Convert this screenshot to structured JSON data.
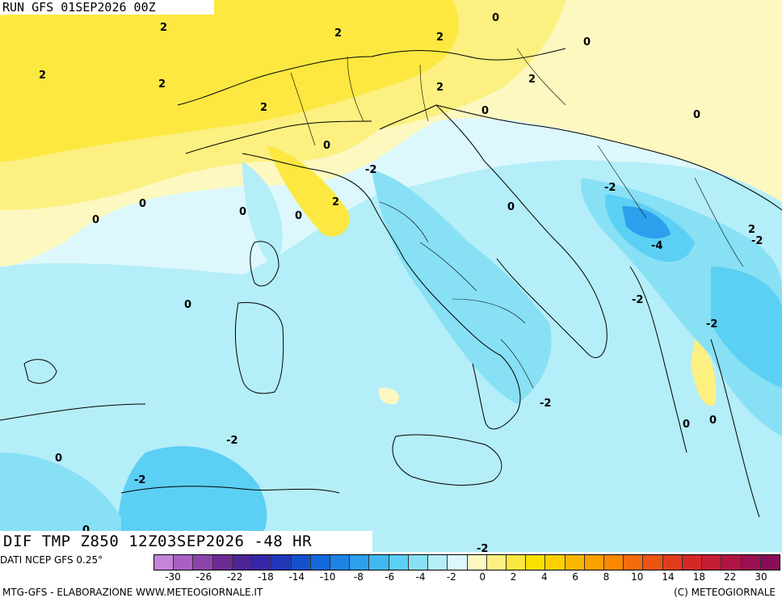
{
  "header": {
    "run_label": "RUN GFS 01SEP2026 00Z"
  },
  "title": "DIF TMP Z850 12Z03SEP2026 -48 HR",
  "source": "DATI NCEP GFS 0.25°",
  "footer": "MTG-GFS - ELABORAZIONE WWW.METEOGIORNALE.IT",
  "copyright": "(C) METEOGIORNALE",
  "colorbar": {
    "colors": [
      "#c484d8",
      "#a860c4",
      "#8c44ac",
      "#6c2c94",
      "#4c2494",
      "#3428a8",
      "#2038b8",
      "#1450cc",
      "#1468dc",
      "#1c84e4",
      "#2ca0ec",
      "#40b8f0",
      "#5ccff4",
      "#88e0f4",
      "#b4eef8",
      "#dcf8fc",
      "#fcf8c0",
      "#fcf080",
      "#fce840",
      "#fce000",
      "#fcd000",
      "#fcb800",
      "#fca000",
      "#fc8800",
      "#f46c0c",
      "#ec5414",
      "#e03c1c",
      "#d42828",
      "#c41c34",
      "#b01444",
      "#9c1050",
      "#880c58"
    ],
    "ticks": [
      "-30",
      "-26",
      "-22",
      "-18",
      "-14",
      "-10",
      "-8",
      "-6",
      "-4",
      "-2",
      "0",
      "2",
      "4",
      "6",
      "8",
      "10",
      "14",
      "18",
      "22",
      "30"
    ]
  },
  "contour_labels": [
    {
      "text": "0"
    },
    {
      "text": "2"
    },
    {
      "text": "2"
    },
    {
      "text": "0"
    },
    {
      "text": "2"
    },
    {
      "text": "2"
    },
    {
      "text": "2"
    },
    {
      "text": "2"
    },
    {
      "text": "2"
    },
    {
      "text": "0"
    },
    {
      "text": "0"
    },
    {
      "text": "2"
    },
    {
      "text": "0"
    },
    {
      "text": "-2"
    },
    {
      "text": "2"
    },
    {
      "text": "0"
    },
    {
      "text": "0"
    },
    {
      "text": "0"
    },
    {
      "text": "0"
    },
    {
      "text": "-2"
    },
    {
      "text": "0"
    },
    {
      "text": "-2"
    },
    {
      "text": "-4"
    },
    {
      "text": "-2"
    },
    {
      "text": "0"
    },
    {
      "text": "-2"
    },
    {
      "text": "-2"
    },
    {
      "text": "0"
    },
    {
      "text": "0"
    },
    {
      "text": "-2"
    },
    {
      "text": "0"
    },
    {
      "text": "-2"
    },
    {
      "text": "-2"
    },
    {
      "text": "2"
    },
    {
      "text": "0"
    }
  ]
}
